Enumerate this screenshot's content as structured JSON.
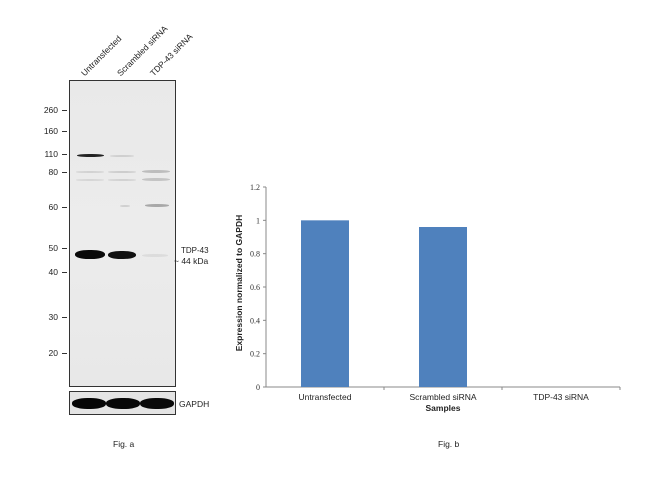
{
  "blot": {
    "lanes": [
      "Untransfected",
      "Scrambled siRNA",
      "TDP-43 siRNA"
    ],
    "markers": [
      {
        "label": "260",
        "kda": 260
      },
      {
        "label": "160",
        "kda": 160
      },
      {
        "label": "110",
        "kda": 110
      },
      {
        "label": "80",
        "kda": 80
      },
      {
        "label": "60",
        "kda": 60
      },
      {
        "label": "50",
        "kda": 50
      },
      {
        "label": "40",
        "kda": 40
      },
      {
        "label": "30",
        "kda": 30
      },
      {
        "label": "20",
        "kda": 20
      }
    ],
    "target_name": "TDP-43",
    "target_size": "~ 44 kDa",
    "loading_control": "GAPDH",
    "caption": "Fig. a"
  },
  "chart_data": {
    "type": "bar",
    "categories": [
      "Untransfected",
      "Scrambled siRNA",
      "TDP-43 siRNA"
    ],
    "values": [
      1.0,
      0.96,
      0.0
    ],
    "title": "",
    "xlabel": "Samples",
    "ylabel": "Expression normalized to GAPDH",
    "ylim": [
      0,
      1.2
    ],
    "yticks": [
      "0",
      "0.2",
      "0.4",
      "0.6",
      "0.8",
      "1",
      "1.2"
    ],
    "ytick_values": [
      0,
      0.2,
      0.4,
      0.6,
      0.8,
      1.0,
      1.2
    ],
    "bar_color": "#4f81bd",
    "grid": false,
    "caption": "Fig. b"
  }
}
